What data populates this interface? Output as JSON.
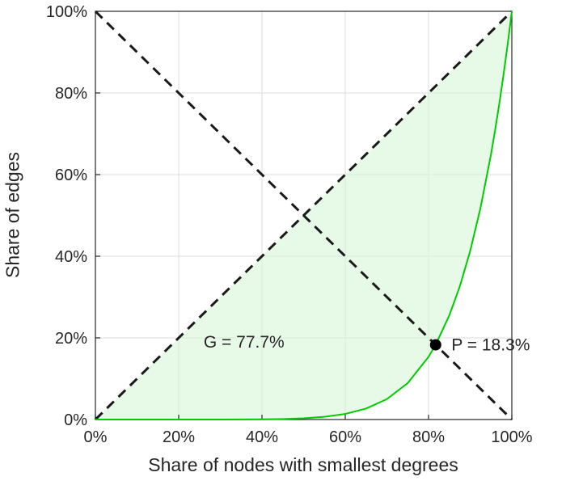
{
  "chart_data": {
    "type": "line",
    "title": "",
    "xlabel": "Share of nodes with smallest degrees",
    "ylabel": "Share of edges",
    "xlim": [
      0,
      100
    ],
    "ylim": [
      0,
      100
    ],
    "x_ticks": [
      0,
      20,
      40,
      60,
      80,
      100
    ],
    "y_ticks": [
      0,
      20,
      40,
      60,
      80,
      100
    ],
    "x_tick_labels": [
      "0%",
      "20%",
      "40%",
      "60%",
      "80%",
      "100%"
    ],
    "y_tick_labels": [
      "0%",
      "20%",
      "40%",
      "60%",
      "80%",
      "100%"
    ],
    "grid": true,
    "series": [
      {
        "name": "equality-line",
        "type": "line",
        "color": "#1a1a1a",
        "width": 3,
        "dash": "dashed",
        "points": [
          [
            0,
            0
          ],
          [
            100,
            100
          ]
        ]
      },
      {
        "name": "anti-diagonal",
        "type": "line",
        "color": "#1a1a1a",
        "width": 3,
        "dash": "dashed",
        "points": [
          [
            0,
            100
          ],
          [
            100,
            0
          ]
        ]
      },
      {
        "name": "lorenz-curve",
        "type": "line",
        "color": "#00cc00",
        "width": 2,
        "dash": "solid",
        "points": [
          [
            0,
            0
          ],
          [
            10,
            0
          ],
          [
            20,
            0
          ],
          [
            30,
            0
          ],
          [
            35,
            0.02
          ],
          [
            40,
            0.05
          ],
          [
            45,
            0.12
          ],
          [
            50,
            0.3
          ],
          [
            55,
            0.66
          ],
          [
            60,
            1.37
          ],
          [
            65,
            2.68
          ],
          [
            70,
            5.0
          ],
          [
            75,
            8.92
          ],
          [
            80,
            15.35
          ],
          [
            81.7,
            18.3
          ],
          [
            85,
            25.53
          ],
          [
            87.5,
            32.58
          ],
          [
            90,
            41.27
          ],
          [
            92.5,
            51.95
          ],
          [
            95,
            64.97
          ],
          [
            96,
            70.97
          ],
          [
            97,
            77.42
          ],
          [
            98,
            84.39
          ],
          [
            99,
            91.91
          ],
          [
            99.5,
            95.88
          ],
          [
            100,
            100
          ]
        ]
      }
    ],
    "shaded_area": {
      "between": [
        "equality-line",
        "lorenz-curve"
      ],
      "color": "#d7f5d7",
      "opacity": 0.6
    },
    "point_marker": {
      "x": 81.7,
      "y": 18.3,
      "color": "#000000",
      "radius": 7
    },
    "annotations": [
      {
        "name": "gini-label",
        "text": "G = 77.7%",
        "x": 26,
        "y": 19,
        "align": "left"
      },
      {
        "name": "p-label",
        "text": "P = 18.3%",
        "x": 85.5,
        "y": 18.3,
        "align": "left"
      }
    ],
    "legend": "none",
    "colors": {
      "curve": "#00cc00",
      "fill": "#d7f5d7",
      "dashed": "#1a1a1a",
      "grid": "#dedede",
      "axis": "#262626",
      "text": "#262626",
      "marker": "#000000"
    }
  }
}
